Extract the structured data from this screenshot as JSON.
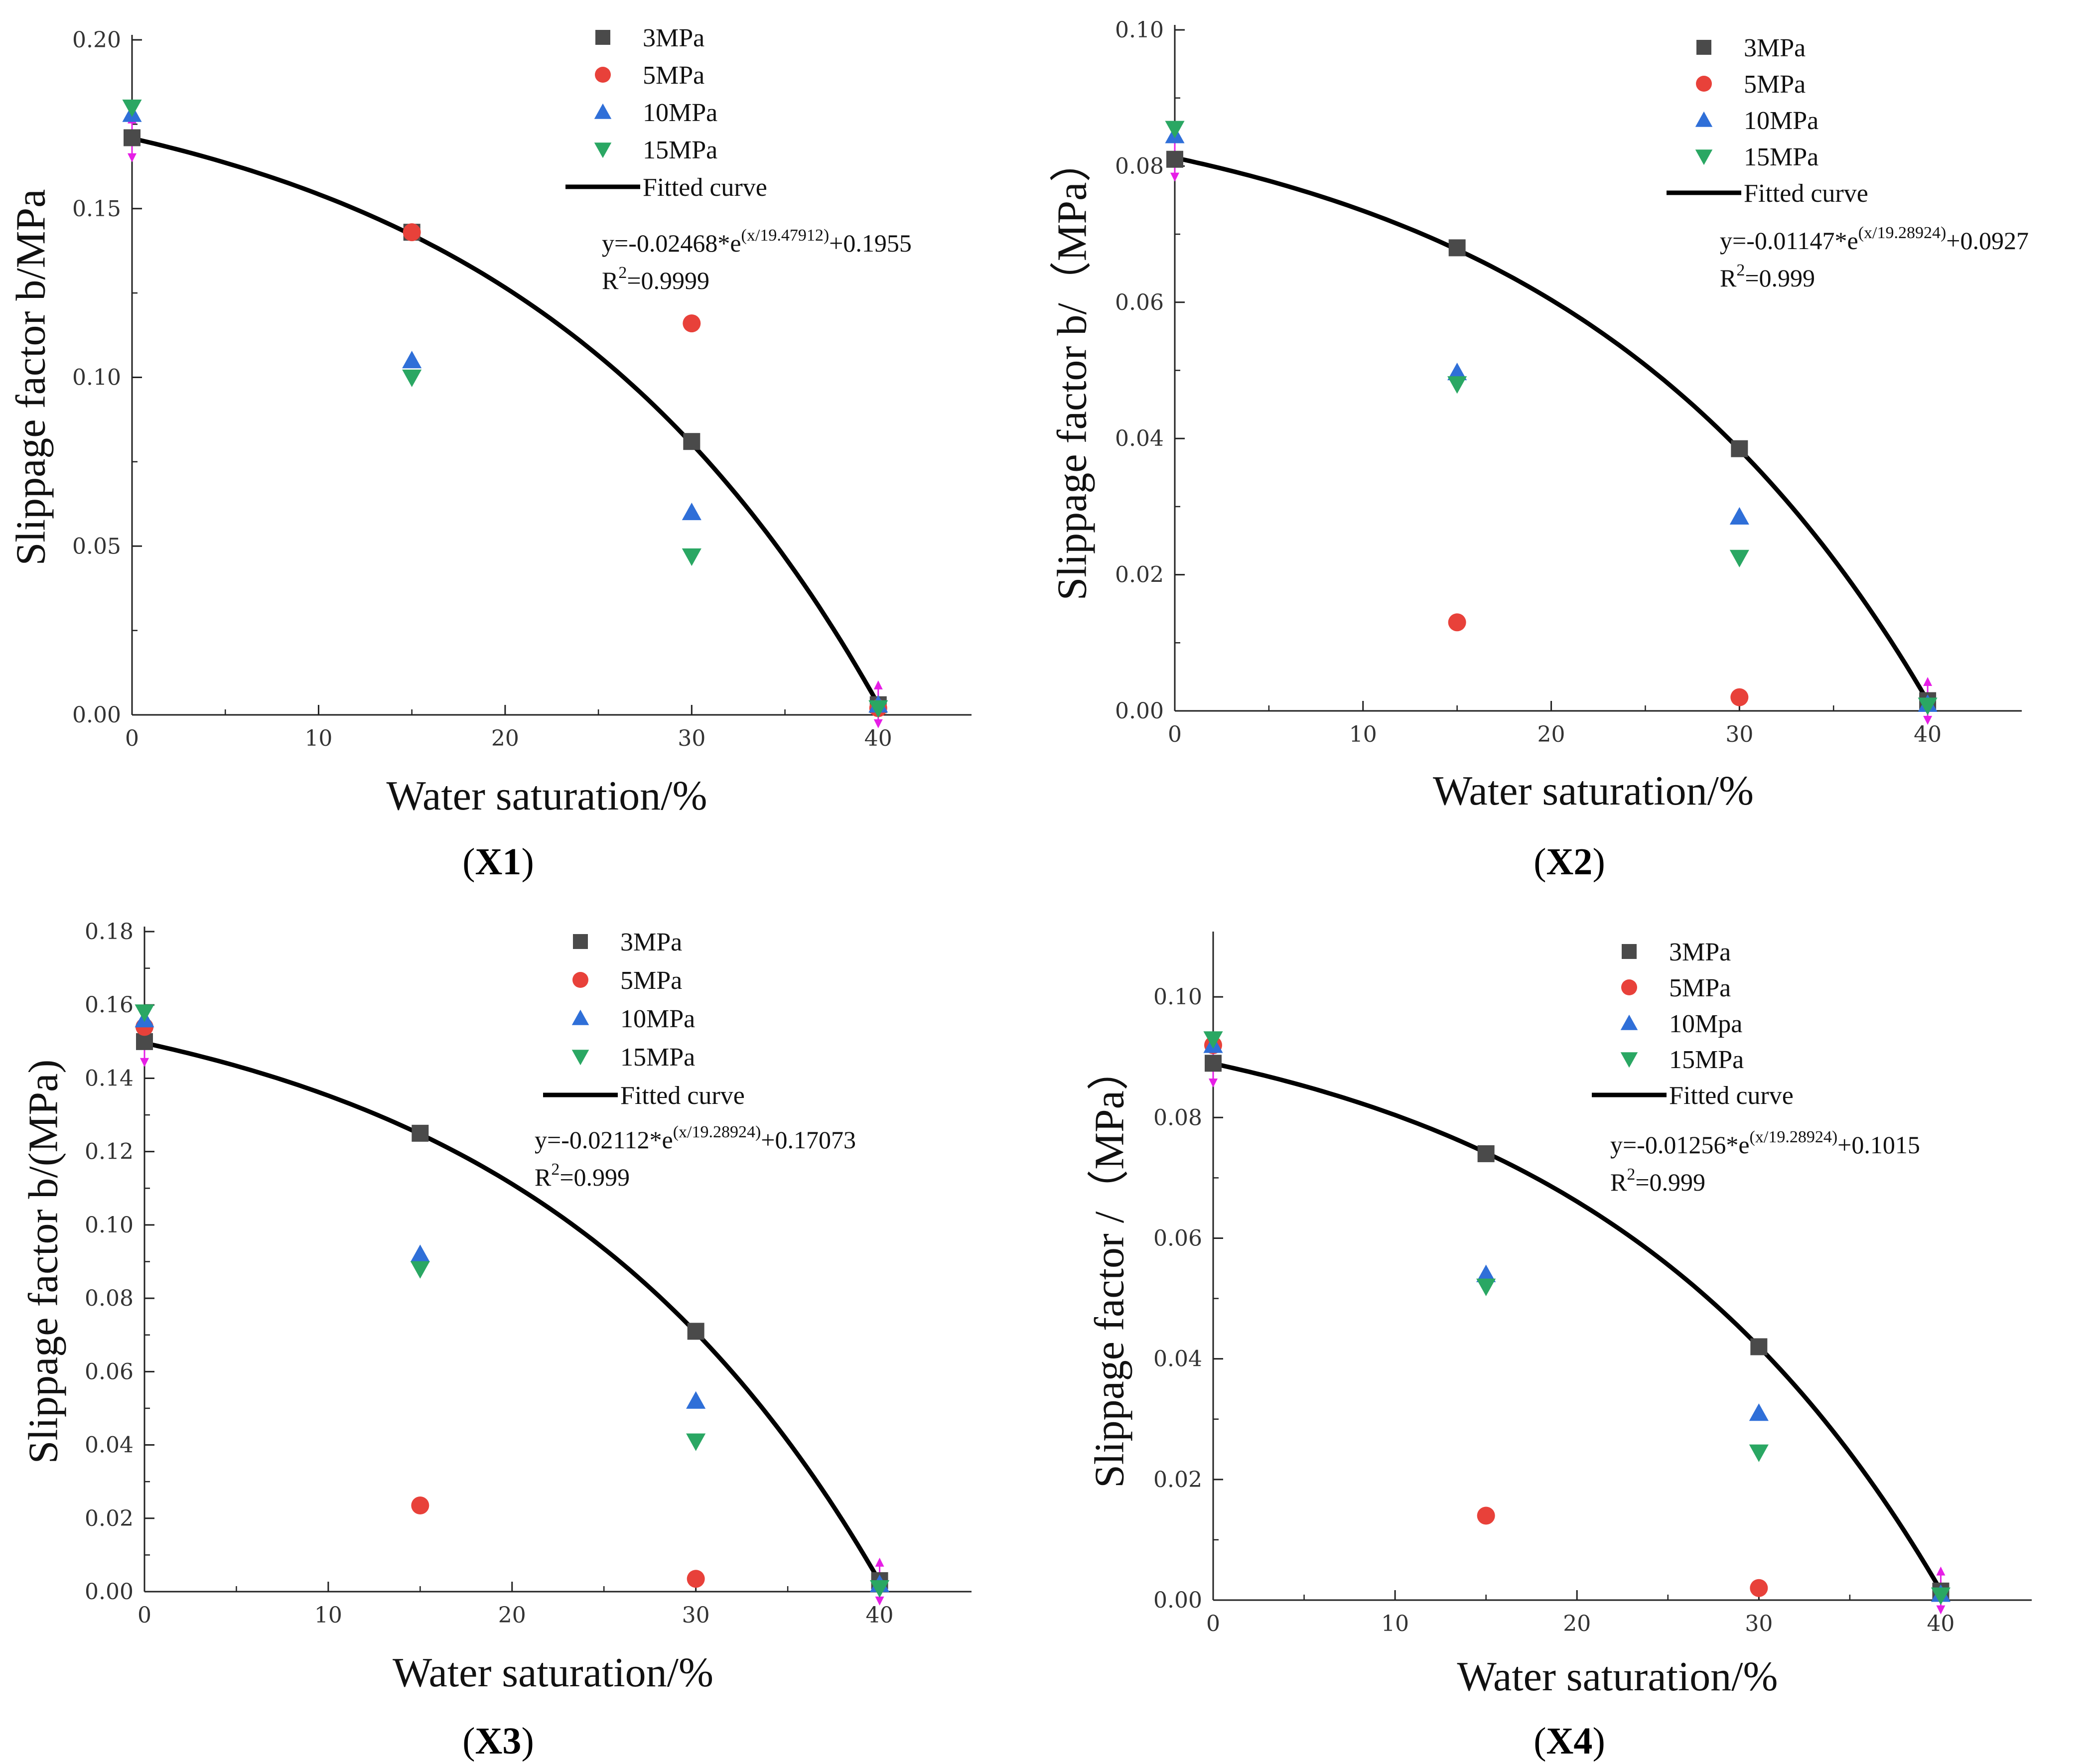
{
  "chart_data": [
    {
      "id": "X1",
      "type": "scatter",
      "panel_label": "X1",
      "xlabel": "Water saturation/%",
      "ylabel": "Slippage factor b/MPa",
      "xlim": [
        0,
        45
      ],
      "ylim": [
        0,
        0.2
      ],
      "xticks": [
        0,
        10,
        20,
        30,
        40
      ],
      "yticks": [
        "0.00",
        "0.05",
        "0.10",
        "0.15",
        "0.20"
      ],
      "ytick_values": [
        0,
        0.05,
        0.1,
        0.15,
        0.2
      ],
      "series": [
        {
          "name": "3MPa",
          "color": "#4a4a4a",
          "marker": "square",
          "x": [
            0,
            15,
            30,
            40
          ],
          "y": [
            0.171,
            0.143,
            0.081,
            0.003
          ]
        },
        {
          "name": "5MPa",
          "color": "#e8413a",
          "marker": "circle",
          "x": [
            15,
            30,
            40
          ],
          "y": [
            0.143,
            0.116,
            0.002
          ]
        },
        {
          "name": "10MPa",
          "color": "#2f6fd8",
          "marker": "triangle-up",
          "x": [
            0,
            15,
            30,
            40
          ],
          "y": [
            0.178,
            0.105,
            0.06,
            0.003
          ]
        },
        {
          "name": "15MPa",
          "color": "#2aa763",
          "marker": "triangle-down",
          "x": [
            0,
            15,
            30,
            40
          ],
          "y": [
            0.18,
            0.1,
            0.047,
            0.002
          ]
        }
      ],
      "fit": {
        "a": -0.02468,
        "t": 19.47912,
        "c": 0.1955
      },
      "legend_fit_label": "Fitted curve",
      "equation_prefix": "y=-0.02468*e",
      "equation_exp": "(x/19.47912)",
      "equation_suffix": "+0.1955",
      "r2_prefix": "R",
      "r2_sup": "2",
      "r2_value": "=0.9999"
    },
    {
      "id": "X2",
      "type": "scatter",
      "panel_label": "X2",
      "xlabel": "Water saturation/%",
      "ylabel": "Slippage factor b/（MPa）",
      "xlim": [
        0,
        45
      ],
      "ylim": [
        0,
        0.1
      ],
      "xticks": [
        0,
        10,
        20,
        30,
        40
      ],
      "yticks": [
        "0.00",
        "0.02",
        "0.04",
        "0.06",
        "0.08",
        "0.10"
      ],
      "ytick_values": [
        0,
        0.02,
        0.04,
        0.06,
        0.08,
        0.1
      ],
      "series": [
        {
          "name": "3MPa",
          "color": "#4a4a4a",
          "marker": "square",
          "x": [
            0,
            15,
            30,
            40
          ],
          "y": [
            0.081,
            0.068,
            0.0385,
            0.0015
          ]
        },
        {
          "name": "5MPa",
          "color": "#e8413a",
          "marker": "circle",
          "x": [
            15,
            30
          ],
          "y": [
            0.013,
            0.002
          ]
        },
        {
          "name": "10MPa",
          "color": "#2f6fd8",
          "marker": "triangle-up",
          "x": [
            0,
            15,
            30,
            40
          ],
          "y": [
            0.0845,
            0.0497,
            0.0285,
            0.001
          ]
        },
        {
          "name": "15MPa",
          "color": "#2aa763",
          "marker": "triangle-down",
          "x": [
            0,
            15,
            30,
            40
          ],
          "y": [
            0.0855,
            0.048,
            0.0225,
            0.0008
          ]
        }
      ],
      "fit": {
        "a": -0.01147,
        "t": 19.28924,
        "c": 0.0927
      },
      "legend_fit_label": "Fitted curve",
      "equation_prefix": "y=-0.01147*e",
      "equation_exp": "(x/19.28924)",
      "equation_suffix": "+0.0927",
      "r2_prefix": "R",
      "r2_sup": "2",
      "r2_value": "=0.999"
    },
    {
      "id": "X3",
      "type": "scatter",
      "panel_label": "X3",
      "xlabel": "Water saturation/%",
      "ylabel": "Slippage factor b/(MPa)",
      "xlim": [
        0,
        45
      ],
      "ylim": [
        0,
        0.18
      ],
      "xticks": [
        0,
        10,
        20,
        30,
        40
      ],
      "yticks": [
        "0.00",
        "0.02",
        "0.04",
        "0.06",
        "0.08",
        "0.10",
        "0.12",
        "0.14",
        "0.16",
        "0.18"
      ],
      "ytick_values": [
        0,
        0.02,
        0.04,
        0.06,
        0.08,
        0.1,
        0.12,
        0.14,
        0.16,
        0.18
      ],
      "series": [
        {
          "name": "3MPa",
          "color": "#4a4a4a",
          "marker": "square",
          "x": [
            0,
            15,
            30,
            40
          ],
          "y": [
            0.15,
            0.125,
            0.071,
            0.003
          ]
        },
        {
          "name": "5MPa",
          "color": "#e8413a",
          "marker": "circle",
          "x": [
            0,
            15,
            30
          ],
          "y": [
            0.154,
            0.0235,
            0.0035
          ]
        },
        {
          "name": "10MPa",
          "color": "#2f6fd8",
          "marker": "triangle-up",
          "x": [
            0,
            15,
            30,
            40
          ],
          "y": [
            0.156,
            0.092,
            0.052,
            0.002
          ]
        },
        {
          "name": "15MPa",
          "color": "#2aa763",
          "marker": "triangle-down",
          "x": [
            0,
            15,
            30,
            40
          ],
          "y": [
            0.158,
            0.088,
            0.041,
            0.001
          ]
        }
      ],
      "fit": {
        "a": -0.02112,
        "t": 19.28924,
        "c": 0.17073
      },
      "legend_fit_label": "Fitted curve",
      "equation_prefix": "y=-0.02112*e",
      "equation_exp": "(x/19.28924)",
      "equation_suffix": "+0.17073",
      "r2_prefix": "R",
      "r2_sup": "2",
      "r2_value": "=0.999"
    },
    {
      "id": "X4",
      "type": "scatter",
      "panel_label": "X4",
      "xlabel": "Water saturation/%",
      "ylabel": "Slippage factor /（MPa）",
      "xlim": [
        0,
        45
      ],
      "ylim": [
        0,
        0.11
      ],
      "xticks": [
        0,
        10,
        20,
        30,
        40
      ],
      "yticks": [
        "0.00",
        "0.02",
        "0.04",
        "0.06",
        "0.08",
        "0.10"
      ],
      "ytick_values": [
        0,
        0.02,
        0.04,
        0.06,
        0.08,
        0.1
      ],
      "series": [
        {
          "name": "3MPa",
          "color": "#4a4a4a",
          "marker": "square",
          "x": [
            0,
            15,
            30,
            40
          ],
          "y": [
            0.089,
            0.074,
            0.042,
            0.0015
          ]
        },
        {
          "name": "5MPa",
          "color": "#e8413a",
          "marker": "circle",
          "x": [
            0,
            15,
            30
          ],
          "y": [
            0.092,
            0.014,
            0.002
          ]
        },
        {
          "name": "10Mpa",
          "color": "#2f6fd8",
          "marker": "triangle-up",
          "x": [
            0,
            15,
            30,
            40
          ],
          "y": [
            0.092,
            0.054,
            0.031,
            0.001
          ]
        },
        {
          "name": "15MPa",
          "color": "#2aa763",
          "marker": "triangle-down",
          "x": [
            0,
            15,
            30,
            40
          ],
          "y": [
            0.093,
            0.052,
            0.0245,
            0.0008
          ]
        }
      ],
      "fit": {
        "a": -0.01256,
        "t": 19.28924,
        "c": 0.1015
      },
      "legend_fit_label": "Fitted curve",
      "equation_prefix": "y=-0.01256*e",
      "equation_exp": "(x/19.28924)",
      "equation_suffix": "+0.1015",
      "r2_prefix": "R",
      "r2_sup": "2",
      "r2_value": "=0.999"
    }
  ]
}
